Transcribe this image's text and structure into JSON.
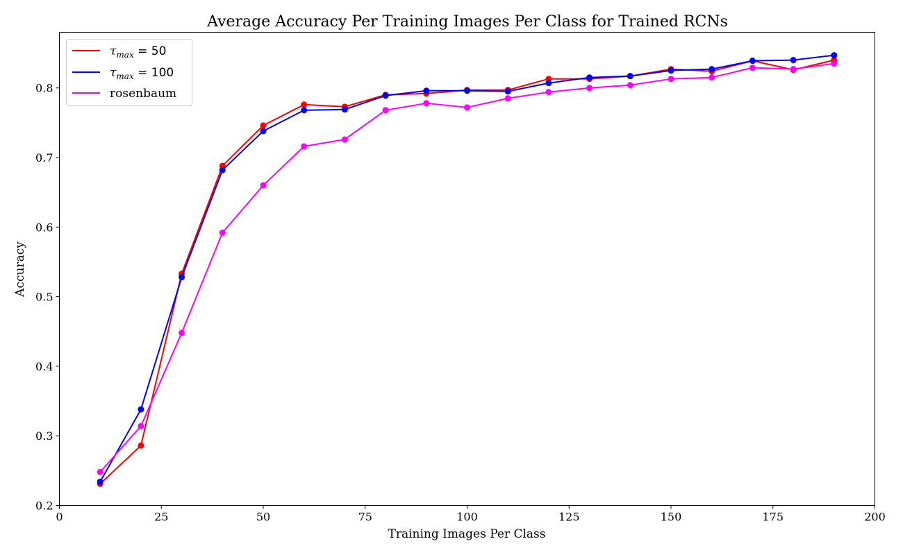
{
  "chart_data": {
    "type": "line",
    "title": "Average Accuracy Per Training Images Per Class for Trained RCNs",
    "xlabel": "Training Images Per Class",
    "ylabel": "Accuracy",
    "xlim": [
      0,
      200
    ],
    "ylim": [
      0.2,
      0.88
    ],
    "xticks": [
      0,
      25,
      50,
      75,
      100,
      125,
      150,
      175,
      200
    ],
    "yticks": [
      0.2,
      0.3,
      0.4,
      0.5,
      0.6,
      0.7,
      0.8
    ],
    "grid": false,
    "legend_position": "top-left",
    "x": [
      10,
      20,
      30,
      40,
      50,
      60,
      70,
      80,
      90,
      100,
      110,
      120,
      130,
      140,
      150,
      160,
      170,
      180,
      190
    ],
    "series": [
      {
        "name_main": "τ",
        "name_sub": "max",
        "name_suffix": " = 50",
        "color": "#ff0000",
        "values": [
          0.231,
          0.286,
          0.533,
          0.688,
          0.746,
          0.776,
          0.773,
          0.79,
          0.792,
          0.797,
          0.797,
          0.813,
          0.813,
          0.817,
          0.827,
          0.824,
          0.839,
          0.826,
          0.84
        ]
      },
      {
        "name_main": "τ",
        "name_sub": "max",
        "name_suffix": " = 100",
        "color": "#0000ff",
        "values": [
          0.234,
          0.338,
          0.528,
          0.682,
          0.738,
          0.768,
          0.769,
          0.789,
          0.796,
          0.796,
          0.795,
          0.807,
          0.815,
          0.817,
          0.825,
          0.827,
          0.839,
          0.84,
          0.847
        ]
      },
      {
        "name": "rosenbaum",
        "color": "#ff00ff",
        "values": [
          0.248,
          0.314,
          0.448,
          0.592,
          0.66,
          0.716,
          0.726,
          0.768,
          0.778,
          0.772,
          0.785,
          0.794,
          0.8,
          0.804,
          0.813,
          0.815,
          0.829,
          0.827,
          0.835
        ]
      }
    ]
  }
}
